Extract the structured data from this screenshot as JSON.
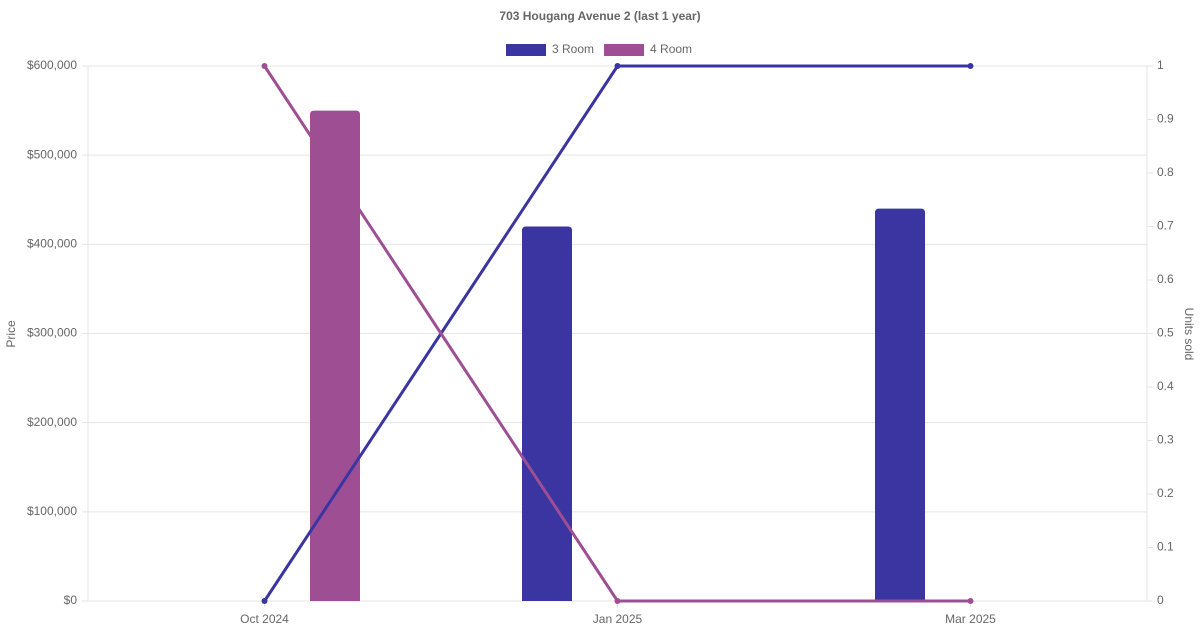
{
  "chart_data": {
    "type": "bar-line",
    "title": "703 Hougang Avenue 2 (last 1 year)",
    "categories": [
      "Oct 2024",
      "Jan 2025",
      "Mar 2025"
    ],
    "series": [
      {
        "name": "3 Room",
        "color": "#3a35a0",
        "values": [
          null,
          420000,
          440000
        ],
        "units": [
          0,
          1,
          1
        ]
      },
      {
        "name": "4 Room",
        "color": "#9e4f94",
        "values": [
          550000,
          null,
          null
        ],
        "units": [
          1,
          0,
          0
        ]
      }
    ],
    "ylabel": "Price",
    "y2label": "Units sold",
    "ylim": [
      0,
      600000
    ],
    "yticks": [
      {
        "value": 0,
        "label": "$0"
      },
      {
        "value": 100000,
        "label": "$100,000"
      },
      {
        "value": 200000,
        "label": "$200,000"
      },
      {
        "value": 300000,
        "label": "$300,000"
      },
      {
        "value": 400000,
        "label": "$400,000"
      },
      {
        "value": 500000,
        "label": "$500,000"
      },
      {
        "value": 600000,
        "label": "$600,000"
      }
    ],
    "y2lim": [
      0,
      1
    ],
    "y2ticks": [
      0,
      0.1,
      0.2,
      0.3,
      0.4,
      0.5,
      0.6,
      0.7,
      0.8,
      0.9,
      1
    ],
    "grid": true,
    "legend": "top"
  }
}
